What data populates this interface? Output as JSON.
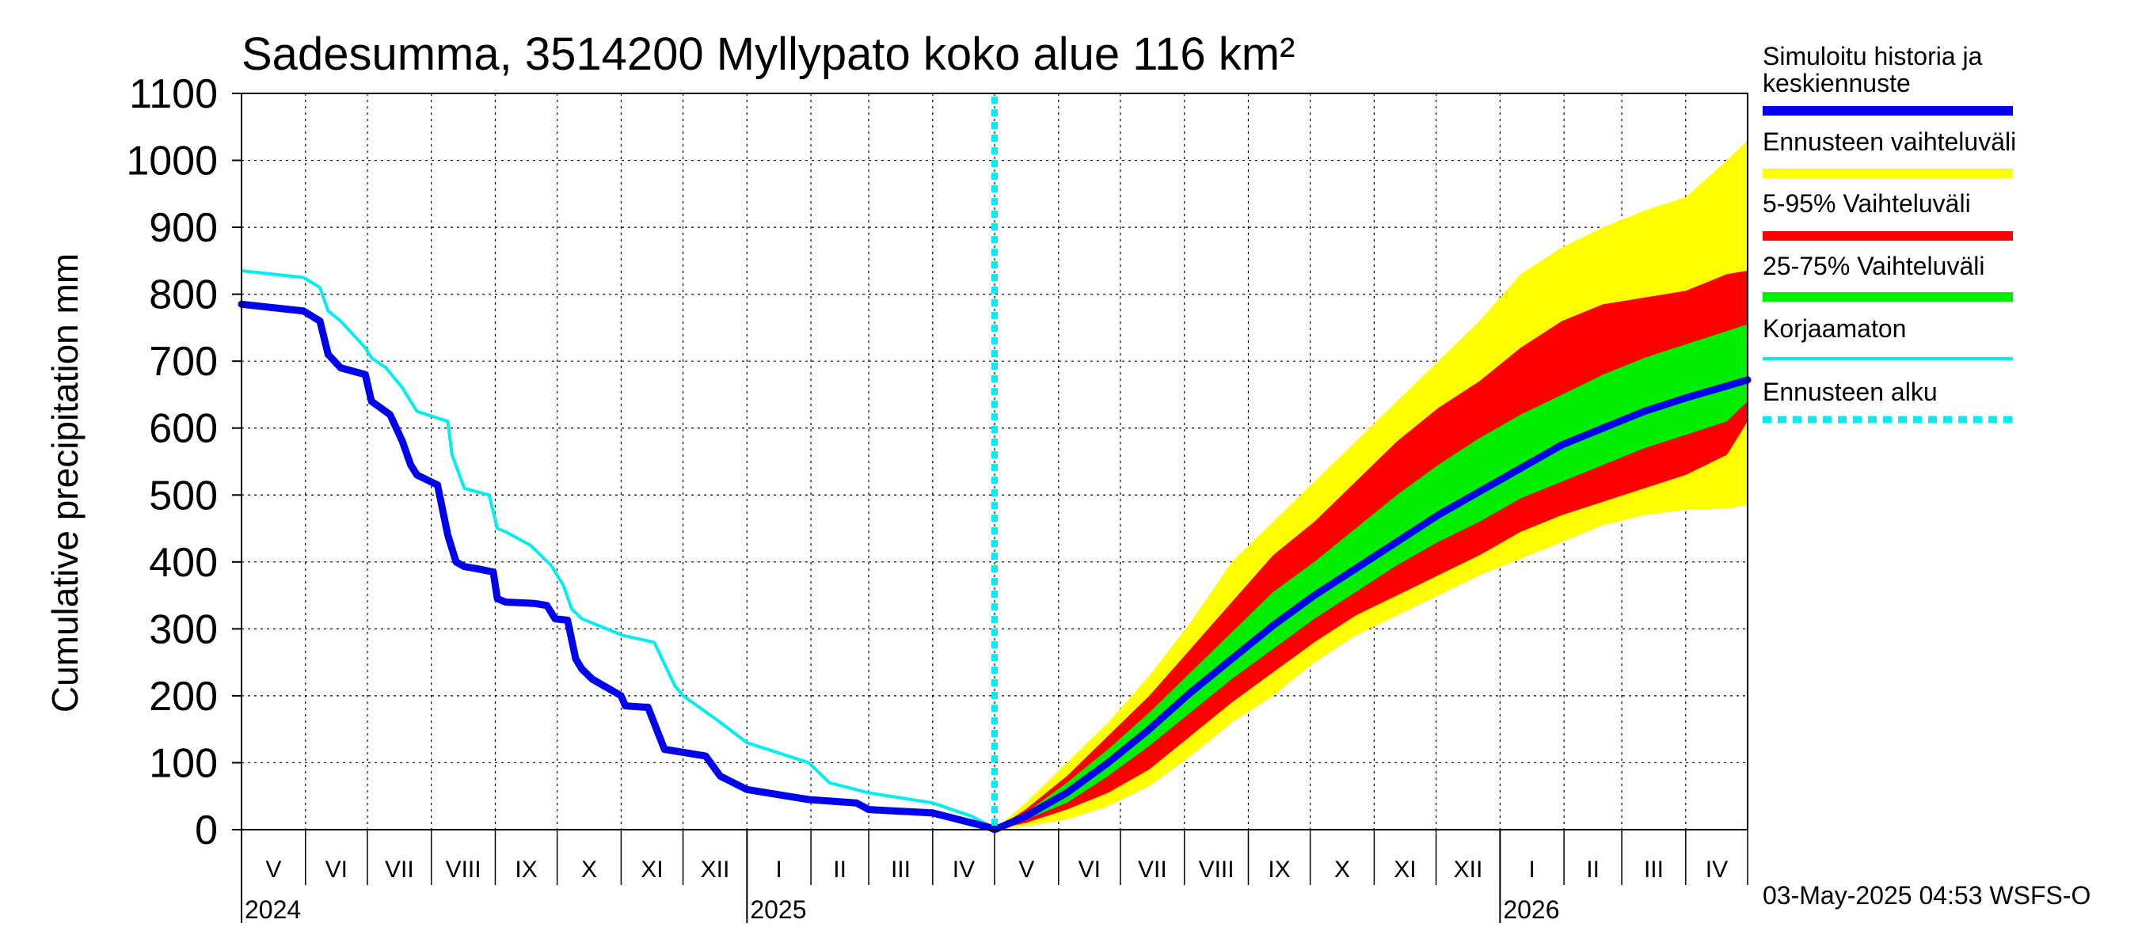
{
  "chart_data": {
    "type": "area",
    "title": "Sadesumma, 3514200 Myllypato koko alue 116 km²",
    "ylabel": "Cumulative precipitation   mm",
    "ylim": [
      0,
      1100
    ],
    "xlim_days": [
      0,
      730
    ],
    "yticks": [
      "0",
      "100",
      "200",
      "300",
      "400",
      "500",
      "600",
      "700",
      "800",
      "900",
      "1000",
      "1100"
    ],
    "grid": true,
    "legend_position": "right",
    "forecast_start_day": 365,
    "months": [
      {
        "label": "V",
        "day": 0
      },
      {
        "label": "VI",
        "day": 31
      },
      {
        "label": "VII",
        "day": 61
      },
      {
        "label": "VIII",
        "day": 92
      },
      {
        "label": "IX",
        "day": 123
      },
      {
        "label": "X",
        "day": 153
      },
      {
        "label": "XI",
        "day": 184
      },
      {
        "label": "XII",
        "day": 214
      },
      {
        "label": "I",
        "day": 245
      },
      {
        "label": "II",
        "day": 276
      },
      {
        "label": "III",
        "day": 304
      },
      {
        "label": "IV",
        "day": 335
      },
      {
        "label": "V",
        "day": 365
      },
      {
        "label": "VI",
        "day": 396
      },
      {
        "label": "VII",
        "day": 426
      },
      {
        "label": "VIII",
        "day": 457
      },
      {
        "label": "IX",
        "day": 488
      },
      {
        "label": "X",
        "day": 518
      },
      {
        "label": "XI",
        "day": 549
      },
      {
        "label": "XII",
        "day": 579
      },
      {
        "label": "I",
        "day": 610
      },
      {
        "label": "II",
        "day": 641
      },
      {
        "label": "III",
        "day": 669
      },
      {
        "label": "IV",
        "day": 700
      }
    ],
    "years": [
      {
        "label": "2024",
        "day": 0
      },
      {
        "label": "2025",
        "day": 245
      },
      {
        "label": "2026",
        "day": 610
      }
    ],
    "legend": [
      {
        "label": "Simuloitu historia ja keskiennuste",
        "color": "#0000ee",
        "style": "solid"
      },
      {
        "label": "Ennusteen vaihteluväli",
        "color": "#ffff00",
        "style": "solid"
      },
      {
        "label": "5-95% Vaihteluväli",
        "color": "#ff0000",
        "style": "solid"
      },
      {
        "label": "25-75% Vaihteluväli",
        "color": "#00ee00",
        "style": "solid"
      },
      {
        "label": "Korjaamaton",
        "color": "#00eeee",
        "style": "solid"
      },
      {
        "label": "Ennusteen alku",
        "color": "#00eeee",
        "style": "dashed"
      }
    ],
    "series": [
      {
        "name": "Simuloitu historia ja keskiennuste",
        "x": [
          0,
          30,
          38,
          42,
          48,
          60,
          63,
          72,
          78,
          82,
          85,
          95,
          100,
          104,
          108,
          114,
          122,
          124,
          128,
          142,
          148,
          152,
          158,
          162,
          165,
          170,
          184,
          186,
          195,
          197,
          205,
          225,
          232,
          245,
          275,
          298,
          304,
          335,
          354,
          363,
          365,
          380,
          400,
          420,
          440,
          460,
          480,
          500,
          520,
          540,
          560,
          580,
          600,
          620,
          640,
          660,
          680,
          700,
          730
        ],
        "y": [
          785,
          775,
          760,
          710,
          690,
          680,
          640,
          620,
          580,
          545,
          530,
          515,
          440,
          400,
          393,
          390,
          385,
          345,
          340,
          338,
          335,
          315,
          313,
          255,
          240,
          225,
          200,
          185,
          183,
          183,
          120,
          110,
          80,
          60,
          45,
          40,
          30,
          25,
          10,
          3,
          0,
          20,
          55,
          100,
          150,
          205,
          255,
          305,
          350,
          390,
          430,
          470,
          505,
          540,
          575,
          600,
          625,
          645,
          672
        ]
      },
      {
        "name": "Korjaamaton",
        "x": [
          0,
          30,
          38,
          42,
          48,
          60,
          63,
          70,
          78,
          85,
          100,
          102,
          108,
          120,
          124,
          128,
          140,
          150,
          156,
          160,
          165,
          185,
          200,
          210,
          214,
          230,
          245,
          275,
          285,
          304,
          335,
          354,
          363,
          365
        ],
        "y": [
          835,
          825,
          810,
          775,
          760,
          720,
          705,
          690,
          660,
          625,
          610,
          560,
          510,
          500,
          450,
          445,
          425,
          395,
          365,
          330,
          315,
          290,
          280,
          215,
          200,
          165,
          130,
          100,
          70,
          55,
          40,
          20,
          5,
          0
        ]
      },
      {
        "name": "Ennusteen vaihteluväli",
        "x": [
          365,
          380,
          400,
          420,
          440,
          460,
          480,
          500,
          520,
          540,
          560,
          580,
          600,
          620,
          640,
          660,
          680,
          700,
          720,
          730
        ],
        "upper": [
          0,
          40,
          100,
          160,
          230,
          310,
          400,
          460,
          520,
          580,
          640,
          700,
          760,
          830,
          870,
          900,
          925,
          945,
          1000,
          1030
        ],
        "lower": [
          0,
          5,
          15,
          35,
          65,
          110,
          160,
          200,
          250,
          290,
          320,
          350,
          380,
          405,
          430,
          455,
          470,
          478,
          480,
          485
        ]
      },
      {
        "name": "5-95% Vaihteluväli",
        "x": [
          365,
          380,
          400,
          420,
          440,
          460,
          480,
          500,
          520,
          540,
          560,
          580,
          600,
          620,
          640,
          660,
          680,
          700,
          720,
          730
        ],
        "upper": [
          0,
          30,
          80,
          140,
          200,
          270,
          340,
          410,
          460,
          520,
          580,
          630,
          670,
          720,
          760,
          785,
          795,
          805,
          830,
          835
        ],
        "lower": [
          0,
          10,
          30,
          55,
          90,
          140,
          190,
          235,
          280,
          320,
          350,
          380,
          410,
          445,
          470,
          490,
          510,
          530,
          560,
          610
        ]
      },
      {
        "name": "25-75% Vaihteluväli",
        "x": [
          365,
          380,
          400,
          420,
          440,
          460,
          480,
          500,
          520,
          540,
          560,
          580,
          600,
          620,
          640,
          660,
          680,
          700,
          720,
          730
        ],
        "upper": [
          0,
          25,
          70,
          120,
          175,
          235,
          295,
          355,
          400,
          450,
          500,
          545,
          585,
          620,
          650,
          680,
          705,
          725,
          745,
          755
        ],
        "lower": [
          0,
          15,
          40,
          80,
          125,
          175,
          225,
          270,
          315,
          355,
          395,
          430,
          460,
          495,
          520,
          545,
          570,
          590,
          610,
          640
        ]
      }
    ]
  },
  "footer": {
    "timestamp": "03-May-2025 04:53 WSFS-O"
  }
}
